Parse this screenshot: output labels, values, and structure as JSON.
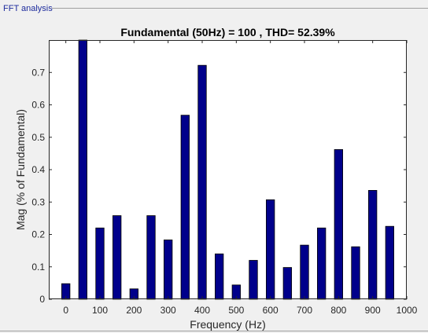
{
  "panel": {
    "title": "FFT analysis"
  },
  "colors": {
    "bar": "#00008b",
    "bar_edge": "#000000",
    "axes_bg": "#ffffff",
    "figure_bg": "#f0f0f0"
  },
  "chart_data": {
    "type": "bar",
    "title": "Fundamental (50Hz) = 100 , THD= 52.39%",
    "xlabel": "Frequency (Hz)",
    "ylabel": "Mag (% of Fundamental)",
    "xlim": [
      -50,
      1000
    ],
    "ylim": [
      0,
      0.8
    ],
    "xticks": [
      0,
      100,
      200,
      300,
      400,
      500,
      600,
      700,
      800,
      900,
      1000
    ],
    "yticks": [
      0,
      0.1,
      0.2,
      0.3,
      0.4,
      0.5,
      0.6,
      0.7
    ],
    "grid": false,
    "x": [
      0,
      50,
      100,
      150,
      200,
      250,
      300,
      350,
      400,
      450,
      500,
      550,
      600,
      650,
      700,
      750,
      800,
      850,
      900,
      950
    ],
    "values": [
      0.048,
      0.8,
      0.22,
      0.258,
      0.032,
      0.258,
      0.183,
      0.568,
      0.722,
      0.14,
      0.044,
      0.12,
      0.307,
      0.098,
      0.167,
      0.22,
      0.462,
      0.162,
      0.336,
      0.225
    ]
  }
}
